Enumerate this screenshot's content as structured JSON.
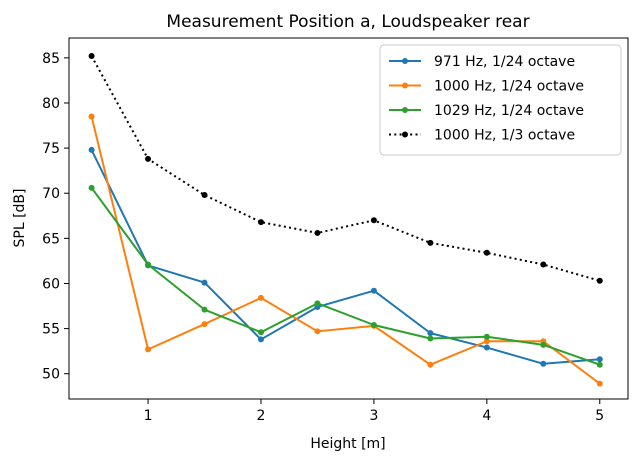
{
  "chart_data": {
    "type": "line",
    "title": "Measurement Position a, Loudspeaker rear",
    "xlabel": "Height [m]",
    "ylabel": "SPL [dB]",
    "xlim": [
      0.3,
      5.25
    ],
    "ylim": [
      47.2,
      87.2
    ],
    "xticks": [
      1,
      2,
      3,
      4,
      5
    ],
    "xtick_labels": [
      "1",
      "2",
      "3",
      "4",
      "5"
    ],
    "yticks": [
      50,
      55,
      60,
      65,
      70,
      75,
      80,
      85
    ],
    "ytick_labels": [
      "50",
      "55",
      "60",
      "65",
      "70",
      "75",
      "80",
      "85"
    ],
    "grid": false,
    "legend_position": "top-right",
    "x": [
      0.5,
      1,
      1.5,
      2,
      2.5,
      3,
      3.5,
      4,
      4.5,
      5
    ],
    "series": [
      {
        "name": "971 Hz, 1/24 octave",
        "color": "#1f77b4",
        "linestyle": "solid",
        "values": [
          74.8,
          62.0,
          60.1,
          53.8,
          57.4,
          59.2,
          54.5,
          52.9,
          51.1,
          51.6
        ]
      },
      {
        "name": "1000 Hz, 1/24 octave",
        "color": "#ff7f0e",
        "linestyle": "solid",
        "values": [
          78.5,
          52.7,
          55.5,
          58.4,
          54.7,
          55.3,
          51.0,
          53.6,
          53.6,
          48.9
        ]
      },
      {
        "name": "1029 Hz, 1/24 octave",
        "color": "#2ca02c",
        "linestyle": "solid",
        "values": [
          70.6,
          62.1,
          57.1,
          54.6,
          57.8,
          55.4,
          53.9,
          54.1,
          53.2,
          51.0
        ]
      },
      {
        "name": "1000 Hz, 1/3 octave",
        "color": "#000000",
        "linestyle": "dotted",
        "values": [
          85.2,
          73.8,
          69.8,
          66.8,
          65.6,
          67.0,
          64.5,
          63.4,
          62.1,
          60.3
        ]
      }
    ]
  }
}
